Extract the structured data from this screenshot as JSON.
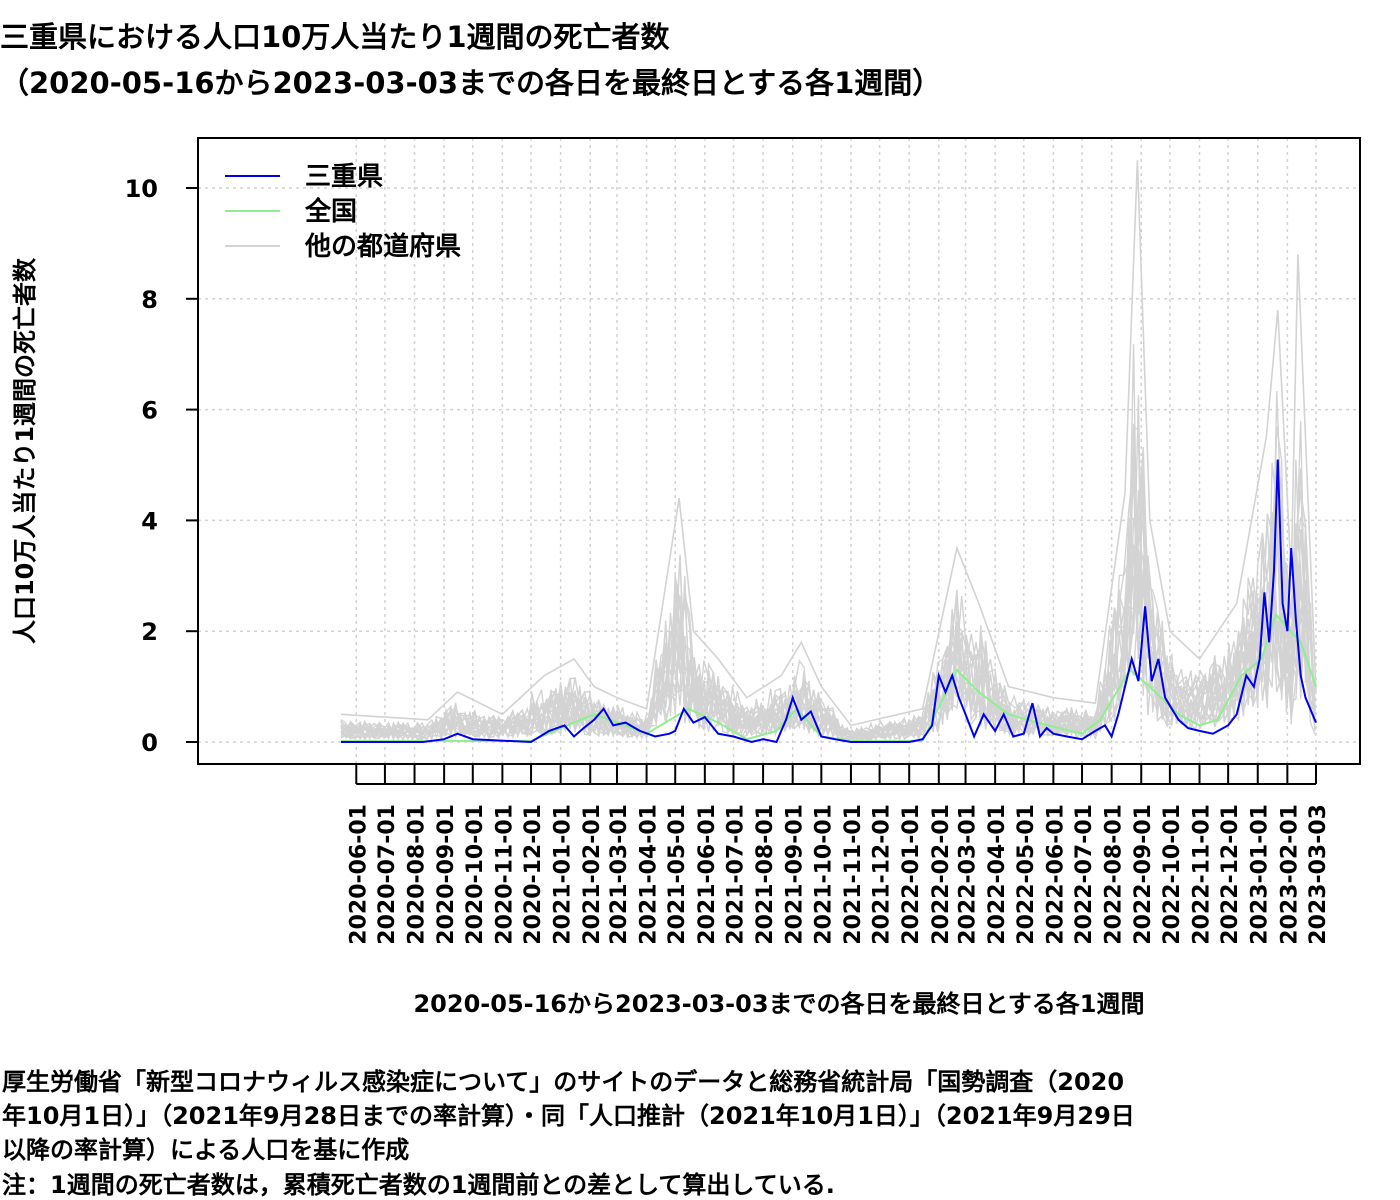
{
  "title_line1": "三重県における人口10万人当たり1週間の死亡者数",
  "title_line2": "（2020-05-16から2023-03-03までの各日を最終日とする各1週間）",
  "footnotes": [
    "厚生労働省「新型コロナウィルス感染症について」のサイトのデータと総務省統計局「国勢調査（2020",
    "年10月1日）」（2021年9月28日までの率計算）・同「人口推計（2021年10月1日）」（2021年9月29日",
    "以降の率計算）による人口を基に作成",
    "注：1週間の死亡者数は，累積死亡者数の1週間前との差として算出している."
  ],
  "colors": {
    "mie": "#0000ee",
    "national": "#90ee90",
    "others": "#d3d3d3",
    "grid": "#d3d3d3"
  },
  "chart_data": {
    "type": "line",
    "xlabel": "2020-05-16から2023-03-03までの各日を最終日とする各1週間",
    "ylabel": "人口10万人当たり1週間の死亡者数",
    "x_start": "2020-05-16",
    "x_end": "2023-03-03",
    "ylim": [
      0,
      10.8
    ],
    "yticks": [
      0,
      2,
      4,
      6,
      8,
      10
    ],
    "x_tick_labels": [
      "2020-06-01",
      "2020-07-01",
      "2020-08-01",
      "2020-09-01",
      "2020-10-01",
      "2020-11-01",
      "2020-12-01",
      "2021-01-01",
      "2021-02-01",
      "2021-03-01",
      "2021-04-01",
      "2021-05-01",
      "2021-06-01",
      "2021-07-01",
      "2021-08-01",
      "2021-09-01",
      "2021-10-01",
      "2021-11-01",
      "2021-12-01",
      "2022-01-01",
      "2022-02-01",
      "2022-03-01",
      "2022-04-01",
      "2022-05-01",
      "2022-06-01",
      "2022-07-01",
      "2022-08-01",
      "2022-09-01",
      "2022-10-01",
      "2022-11-01",
      "2022-12-01",
      "2023-01-01",
      "2023-02-01",
      "2023-03-03"
    ],
    "grid": true,
    "legend_position": "top-left",
    "series": [
      {
        "name": "三重県",
        "role": "mie",
        "x": [
          "2020-05-16",
          "2020-07-01",
          "2020-08-10",
          "2020-09-01",
          "2020-09-15",
          "2020-10-01",
          "2020-12-01",
          "2020-12-20",
          "2021-01-05",
          "2021-01-15",
          "2021-01-25",
          "2021-02-05",
          "2021-02-15",
          "2021-02-25",
          "2021-03-10",
          "2021-03-25",
          "2021-04-10",
          "2021-04-25",
          "2021-05-01",
          "2021-05-10",
          "2021-05-20",
          "2021-06-01",
          "2021-06-15",
          "2021-07-01",
          "2021-07-20",
          "2021-08-01",
          "2021-08-15",
          "2021-08-25",
          "2021-09-01",
          "2021-09-10",
          "2021-09-20",
          "2021-10-01",
          "2021-10-15",
          "2021-11-01",
          "2021-12-01",
          "2022-01-01",
          "2022-01-15",
          "2022-01-25",
          "2022-02-01",
          "2022-02-08",
          "2022-02-15",
          "2022-02-22",
          "2022-03-01",
          "2022-03-10",
          "2022-03-20",
          "2022-04-01",
          "2022-04-10",
          "2022-04-20",
          "2022-05-01",
          "2022-05-10",
          "2022-05-18",
          "2022-05-25",
          "2022-06-01",
          "2022-06-15",
          "2022-07-01",
          "2022-07-15",
          "2022-07-25",
          "2022-08-01",
          "2022-08-08",
          "2022-08-15",
          "2022-08-22",
          "2022-08-29",
          "2022-09-05",
          "2022-09-12",
          "2022-09-19",
          "2022-09-26",
          "2022-10-03",
          "2022-10-10",
          "2022-10-20",
          "2022-11-01",
          "2022-11-15",
          "2022-12-01",
          "2022-12-10",
          "2022-12-20",
          "2022-12-28",
          "2023-01-03",
          "2023-01-08",
          "2023-01-13",
          "2023-01-18",
          "2023-01-22",
          "2023-01-27",
          "2023-02-01",
          "2023-02-05",
          "2023-02-10",
          "2023-02-15",
          "2023-02-20",
          "2023-03-03"
        ],
        "values": [
          0,
          0,
          0,
          0.05,
          0.15,
          0.05,
          0,
          0.2,
          0.3,
          0.1,
          0.25,
          0.4,
          0.6,
          0.3,
          0.35,
          0.2,
          0.1,
          0.15,
          0.2,
          0.6,
          0.35,
          0.45,
          0.15,
          0.1,
          0,
          0.05,
          0,
          0.4,
          0.8,
          0.4,
          0.55,
          0.1,
          0.05,
          0,
          0,
          0,
          0.05,
          0.3,
          1.2,
          0.9,
          1.2,
          0.8,
          0.5,
          0.1,
          0.5,
          0.2,
          0.5,
          0.1,
          0.15,
          0.7,
          0.1,
          0.25,
          0.15,
          0.1,
          0.05,
          0.2,
          0.3,
          0.1,
          0.5,
          1.0,
          1.5,
          1.1,
          2.45,
          1.1,
          1.5,
          0.8,
          0.6,
          0.4,
          0.25,
          0.2,
          0.15,
          0.3,
          0.5,
          1.2,
          1.0,
          1.5,
          2.7,
          1.8,
          3.1,
          5.1,
          2.5,
          2.0,
          3.5,
          2.2,
          1.2,
          0.8,
          0.35
        ]
      },
      {
        "name": "全国",
        "role": "national",
        "x": [
          "2020-05-16",
          "2020-12-01",
          "2021-01-15",
          "2021-02-05",
          "2021-03-01",
          "2021-04-01",
          "2021-05-15",
          "2021-06-15",
          "2021-07-15",
          "2021-08-15",
          "2021-09-05",
          "2021-10-01",
          "2021-11-01",
          "2022-01-15",
          "2022-02-20",
          "2022-03-15",
          "2022-04-15",
          "2022-05-15",
          "2022-07-01",
          "2022-07-20",
          "2022-08-20",
          "2022-09-10",
          "2022-10-10",
          "2022-11-01",
          "2022-11-20",
          "2022-12-15",
          "2023-01-05",
          "2023-01-20",
          "2023-02-15",
          "2023-03-03"
        ],
        "values": [
          0.02,
          0.02,
          0.35,
          0.5,
          0.35,
          0.15,
          0.6,
          0.35,
          0.05,
          0.2,
          0.6,
          0.1,
          0.02,
          0.02,
          1.3,
          0.9,
          0.5,
          0.35,
          0.15,
          0.4,
          1.3,
          1.0,
          0.5,
          0.3,
          0.4,
          1.2,
          1.5,
          2.3,
          1.8,
          1.0
        ]
      },
      {
        "name": "他の都道府県",
        "role": "others",
        "x": [
          "2020-05-16",
          "2020-08-15",
          "2020-09-15",
          "2020-11-01",
          "2020-12-15",
          "2021-01-15",
          "2021-02-05",
          "2021-03-01",
          "2021-04-01",
          "2021-05-05",
          "2021-05-20",
          "2021-06-15",
          "2021-07-15",
          "2021-08-20",
          "2021-09-10",
          "2021-10-01",
          "2021-11-01",
          "2022-01-15",
          "2022-02-20",
          "2022-03-15",
          "2022-04-15",
          "2022-06-01",
          "2022-07-15",
          "2022-08-15",
          "2022-08-28",
          "2022-09-10",
          "2022-10-01",
          "2022-11-01",
          "2022-12-10",
          "2023-01-10",
          "2023-01-22",
          "2023-02-05",
          "2023-02-12",
          "2023-03-03"
        ],
        "values": [
          0.5,
          0.4,
          0.9,
          0.5,
          1.2,
          1.5,
          1.0,
          0.8,
          0.6,
          4.4,
          2.0,
          1.5,
          0.8,
          1.2,
          1.8,
          1.0,
          0.3,
          0.6,
          3.5,
          2.5,
          1.0,
          0.8,
          0.7,
          4.5,
          10.5,
          4.0,
          2.0,
          1.5,
          2.5,
          5.5,
          7.8,
          3.0,
          8.8,
          0.9
        ]
      }
    ]
  }
}
